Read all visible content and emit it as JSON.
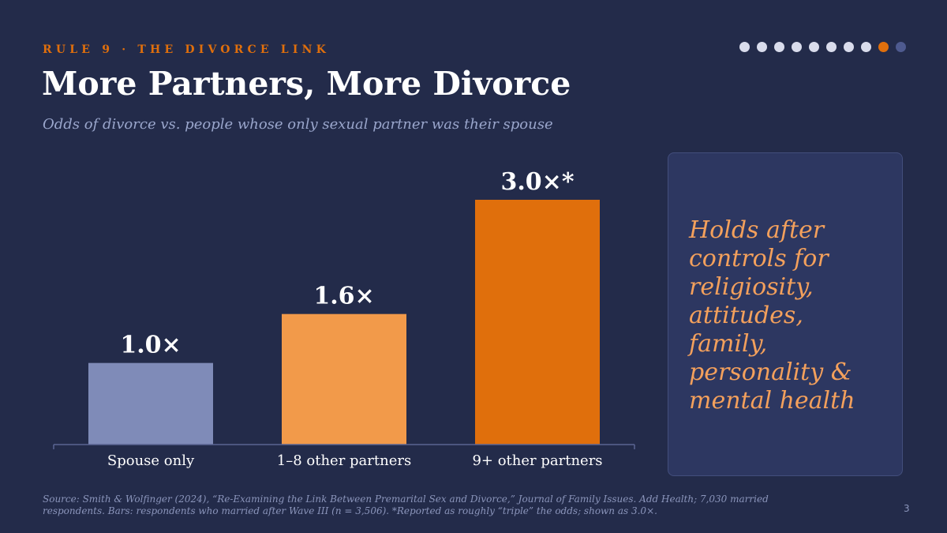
{
  "header": {
    "kicker": "RULE 9 · THE DIVORCE LINK",
    "title": "More Partners, More Divorce",
    "subtitle": "Odds of divorce vs. people whose only sexual partner was their spouse"
  },
  "pager": {
    "total": 10,
    "active": 9
  },
  "colors": {
    "background": "#232b4a",
    "accent": "#e06f0c",
    "bar_1": "#7f8bb8",
    "bar_2": "#f29a4a",
    "bar_3": "#e06f0c"
  },
  "chart_data": {
    "type": "bar",
    "categories": [
      "Spouse only",
      "1–8 other partners",
      "9+ other partners"
    ],
    "values": [
      1.0,
      1.6,
      3.0
    ],
    "data_labels": [
      "1.0×",
      "1.6×",
      "3.0×*"
    ],
    "colors": [
      "#7f8bb8",
      "#f29a4a",
      "#e06f0c"
    ],
    "ylim": [
      0,
      3.3
    ],
    "grid": false,
    "title": "",
    "xlabel": "",
    "ylabel": ""
  },
  "callout": {
    "text": "Holds after controls for religiosity, attitudes, family, personality & mental health"
  },
  "footnote": "Source: Smith & Wolfinger (2024), “Re-Examining the Link Between Premarital Sex and Divorce,” Journal of Family Issues. Add Health; 7,030 married respondents. Bars: respondents who married after Wave III (n = 3,506). *Reported as roughly “triple” the odds; shown as 3.0×.",
  "page_number": "3"
}
